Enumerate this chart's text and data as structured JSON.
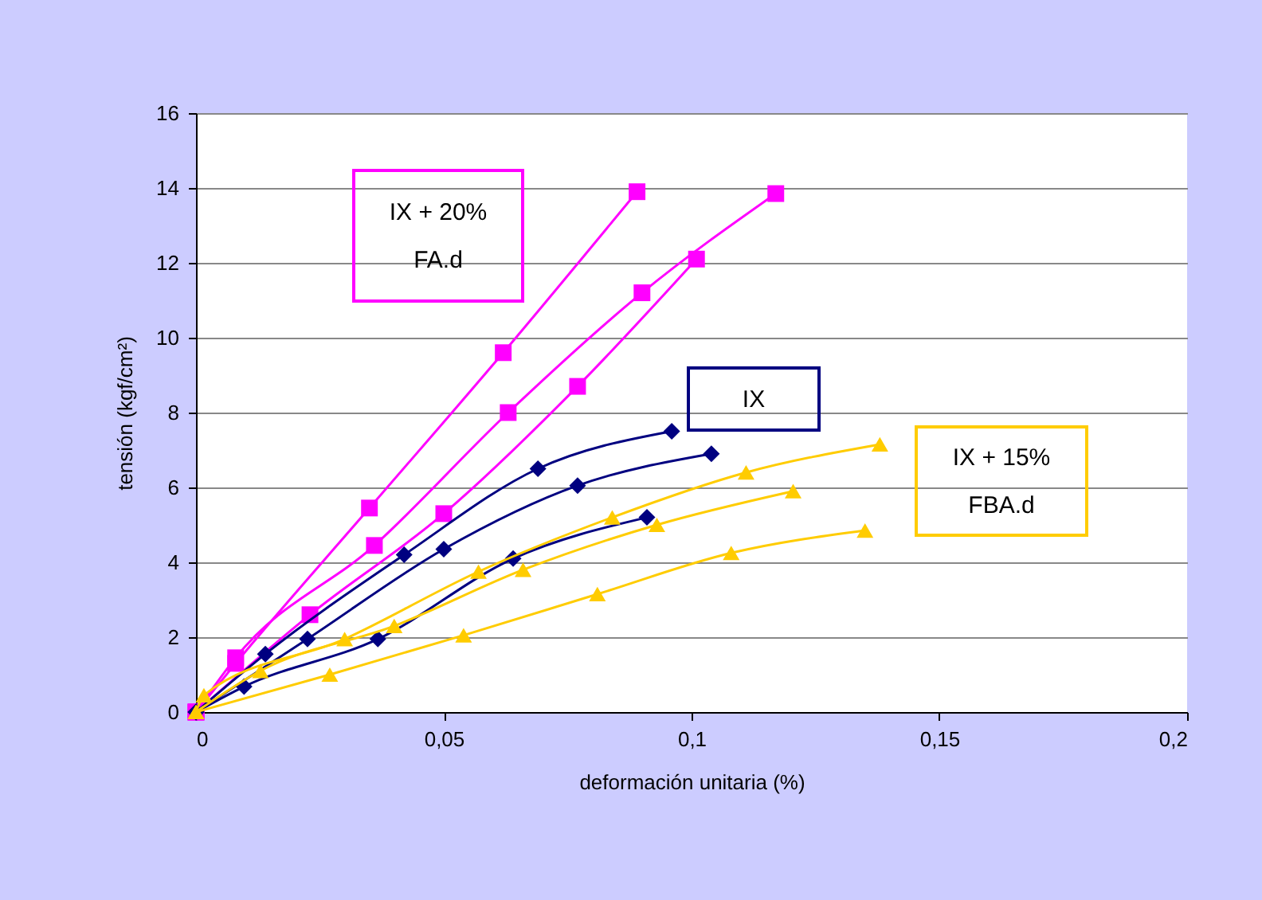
{
  "chart_data": {
    "type": "line",
    "xlabel": "deformación unitaria (%)",
    "ylabel": "tensión (kgf/cm²)",
    "xlim": [
      0,
      0.2
    ],
    "xticks": [
      {
        "value": 0,
        "label": "0"
      },
      {
        "value": 0.05,
        "label": "0,05"
      },
      {
        "value": 0.1,
        "label": "0,1"
      },
      {
        "value": 0.15,
        "label": "0,15"
      },
      {
        "value": 0.2,
        "label": "0,2"
      }
    ],
    "ylim": [
      0,
      16
    ],
    "yticks": [
      0,
      2,
      4,
      6,
      8,
      10,
      12,
      14,
      16
    ],
    "grid": "y",
    "series": [
      {
        "color": "#ff00ff",
        "marker": "square",
        "x": [
          0,
          0.008,
          0.035,
          0.062,
          0.089
        ],
        "values": [
          0,
          1.3,
          5.45,
          9.6,
          13.9
        ]
      },
      {
        "color": "#ff00ff",
        "marker": "square",
        "x": [
          0,
          0.008,
          0.036,
          0.063,
          0.09,
          0.117
        ],
        "values": [
          0,
          1.45,
          4.45,
          8.0,
          11.2,
          13.85
        ]
      },
      {
        "color": "#ff00ff",
        "marker": "square",
        "x": [
          0,
          0.023,
          0.05,
          0.077,
          0.101
        ],
        "values": [
          0,
          2.6,
          5.3,
          8.7,
          12.1
        ]
      },
      {
        "color": "#000080",
        "marker": "diamond",
        "x": [
          0,
          0.014,
          0.042,
          0.069,
          0.096
        ],
        "values": [
          0,
          1.55,
          4.2,
          6.5,
          7.5
        ]
      },
      {
        "color": "#000080",
        "marker": "diamond",
        "x": [
          0,
          0.0225,
          0.05,
          0.077,
          0.104
        ],
        "values": [
          0,
          1.95,
          4.35,
          6.05,
          6.9
        ]
      },
      {
        "color": "#000080",
        "marker": "diamond",
        "x": [
          0,
          0.0097,
          0.0367,
          0.064,
          0.091
        ],
        "values": [
          0,
          0.68,
          1.95,
          4.1,
          5.2
        ]
      },
      {
        "color": "#ffcc00",
        "marker": "triangle",
        "x": [
          0,
          0.0016,
          0.03,
          0.057,
          0.084,
          0.111,
          0.138
        ],
        "values": [
          0,
          0.45,
          1.95,
          3.75,
          5.2,
          6.4,
          7.15
        ]
      },
      {
        "color": "#ffcc00",
        "marker": "triangle",
        "x": [
          0,
          0.013,
          0.04,
          0.066,
          0.093,
          0.1205
        ],
        "values": [
          0,
          1.1,
          2.3,
          3.8,
          5.0,
          5.9
        ]
      },
      {
        "color": "#ffcc00",
        "marker": "triangle",
        "x": [
          0,
          0.027,
          0.054,
          0.081,
          0.108,
          0.135
        ],
        "values": [
          0,
          1.0,
          2.05,
          3.15,
          4.25,
          4.85
        ]
      }
    ],
    "annotations": [
      "IX + 20%\nFA.d",
      "IX",
      "IX + 15%\nFBA.d"
    ]
  }
}
